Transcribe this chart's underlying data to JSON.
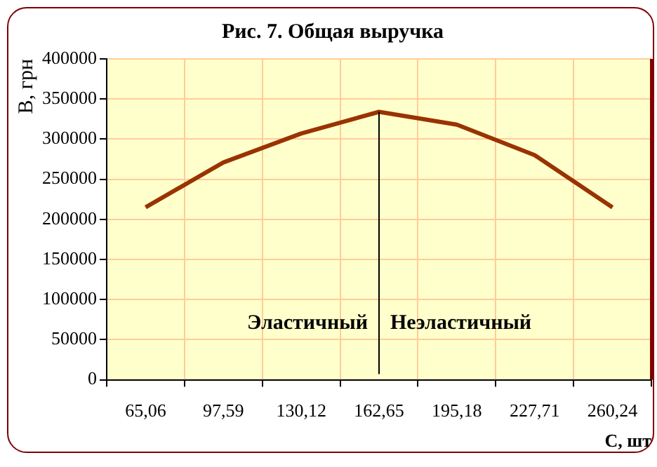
{
  "chart_data": {
    "type": "line",
    "title": "Рис. 7. Общая выручка",
    "xlabel": "С, шт",
    "ylabel": "В, грн",
    "categories": [
      "65,06",
      "97,59",
      "130,12",
      "162,65",
      "195,18",
      "227,71",
      "260,24"
    ],
    "series": [
      {
        "color": "#993300",
        "values": [
          215000,
          271000,
          307000,
          334000,
          318000,
          280000,
          215000
        ]
      }
    ],
    "ylim": [
      0,
      400000
    ],
    "yticks": [
      0,
      50000,
      100000,
      150000,
      200000,
      250000,
      300000,
      350000,
      400000
    ],
    "grid": true,
    "legend": false,
    "marker": "none",
    "line_style": "solid",
    "ref_lines": [
      {
        "axis": "x",
        "value": "162,65",
        "color": "#000000"
      }
    ],
    "annotations": [
      "Эластичный",
      "Неэластичный"
    ]
  }
}
